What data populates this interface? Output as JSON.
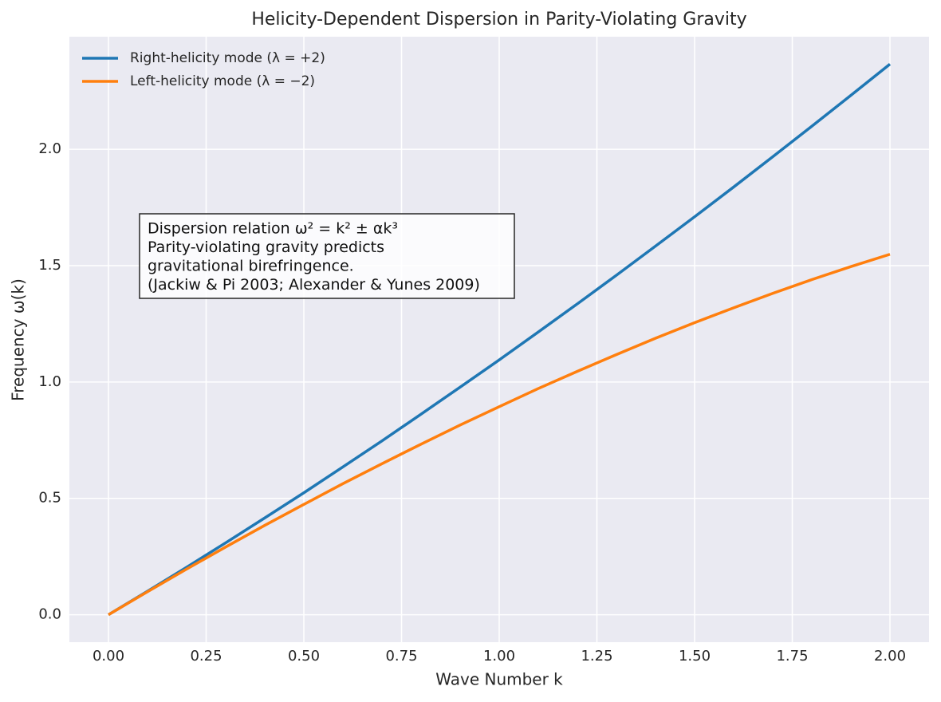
{
  "chart_data": {
    "type": "line",
    "title": "Helicity-Dependent Dispersion in Parity-Violating Gravity",
    "xlabel": "Wave Number k",
    "ylabel": "Frequency ω(k)",
    "x": [
      0,
      0.1,
      0.2,
      0.3,
      0.4,
      0.5,
      0.6,
      0.7,
      0.8,
      0.9,
      1.0,
      1.1,
      1.2,
      1.3,
      1.4,
      1.5,
      1.6,
      1.7,
      1.8,
      1.9,
      2.0
    ],
    "series": [
      {
        "name": "Right-helicity mode (λ = +2)",
        "color": "#1f77b4",
        "values": [
          0,
          0.101,
          0.204,
          0.309,
          0.416,
          0.524,
          0.635,
          0.747,
          0.862,
          0.978,
          1.095,
          1.215,
          1.336,
          1.459,
          1.584,
          1.71,
          1.838,
          1.968,
          2.099,
          2.232,
          2.366
        ]
      },
      {
        "name": "Left-helicity mode (λ = −2)",
        "color": "#ff7f0e",
        "values": [
          0,
          0.099,
          0.196,
          0.291,
          0.384,
          0.474,
          0.563,
          0.649,
          0.733,
          0.815,
          0.894,
          0.972,
          1.046,
          1.118,
          1.188,
          1.255,
          1.319,
          1.381,
          1.44,
          1.496,
          1.549
        ]
      }
    ],
    "xlim": [
      -0.1,
      2.1
    ],
    "ylim": [
      -0.118,
      2.484
    ],
    "xticks": [
      {
        "value": 0,
        "label": "0.00"
      },
      {
        "value": 0.25,
        "label": "0.25"
      },
      {
        "value": 0.5,
        "label": "0.50"
      },
      {
        "value": 0.75,
        "label": "0.75"
      },
      {
        "value": 1,
        "label": "1.00"
      },
      {
        "value": 1.25,
        "label": "1.25"
      },
      {
        "value": 1.5,
        "label": "1.50"
      },
      {
        "value": 1.75,
        "label": "1.75"
      },
      {
        "value": 2,
        "label": "2.00"
      }
    ],
    "yticks": [
      {
        "value": 0,
        "label": "0.0"
      },
      {
        "value": 0.5,
        "label": "0.5"
      },
      {
        "value": 1,
        "label": "1.0"
      },
      {
        "value": 1.5,
        "label": "1.5"
      },
      {
        "value": 2,
        "label": "2.0"
      }
    ],
    "grid": true,
    "legend": "upper left",
    "annotation": [
      "Dispersion relation ω² = k² ± αk³",
      "Parity-violating gravity predicts",
      "gravitational birefringence.",
      "(Jackiw & Pi 2003; Alexander & Yunes 2009)"
    ]
  }
}
